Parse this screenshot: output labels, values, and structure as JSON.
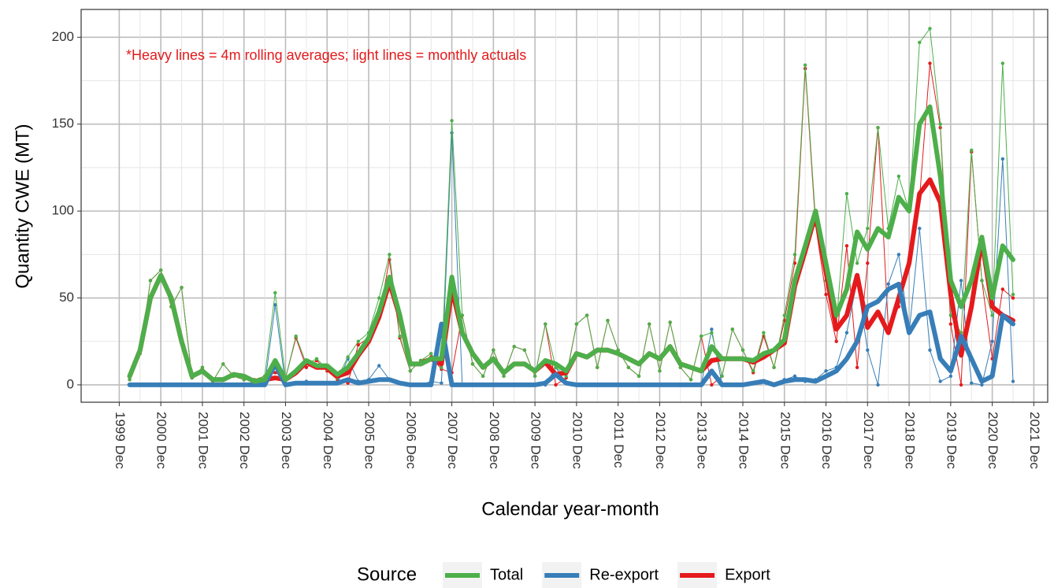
{
  "chart_data": {
    "type": "line",
    "annotation": "*Heavy lines = 4m rolling averages; light lines = monthly actuals",
    "x_label": "Calendar year-month",
    "y_label": "Quantity CWE (MT)",
    "legend_title": "Source",
    "grid": true,
    "legend_position": "bottom",
    "xlim": [
      "1999-01",
      "2022-04"
    ],
    "ylim": [
      -10,
      216
    ],
    "yticks": [
      0,
      50,
      100,
      150,
      200
    ],
    "xticks": [
      {
        "value": "1999-12",
        "label": "1999 Dec"
      },
      {
        "value": "2000-12",
        "label": "2000 Dec"
      },
      {
        "value": "2001-12",
        "label": "2001 Dec"
      },
      {
        "value": "2002-12",
        "label": "2002 Dec"
      },
      {
        "value": "2003-12",
        "label": "2003 Dec"
      },
      {
        "value": "2004-12",
        "label": "2004 Dec"
      },
      {
        "value": "2005-12",
        "label": "2005 Dec"
      },
      {
        "value": "2006-12",
        "label": "2006 Dec"
      },
      {
        "value": "2007-12",
        "label": "2007 Dec"
      },
      {
        "value": "2008-12",
        "label": "2008 Dec"
      },
      {
        "value": "2009-12",
        "label": "2009 Dec"
      },
      {
        "value": "2010-12",
        "label": "2010 Dec"
      },
      {
        "value": "2011-12",
        "label": "2011 Dec"
      },
      {
        "value": "2012-12",
        "label": "2012 Dec"
      },
      {
        "value": "2013-12",
        "label": "2013 Dec"
      },
      {
        "value": "2014-12",
        "label": "2014 Dec"
      },
      {
        "value": "2015-12",
        "label": "2015 Dec"
      },
      {
        "value": "2016-12",
        "label": "2016 Dec"
      },
      {
        "value": "2017-12",
        "label": "2017 Dec"
      },
      {
        "value": "2018-12",
        "label": "2018 Dec"
      },
      {
        "value": "2019-12",
        "label": "2019 Dec"
      },
      {
        "value": "2020-12",
        "label": "2020 Dec"
      },
      {
        "value": "2021-12",
        "label": "2021 Dec"
      }
    ],
    "x": [
      "2000-03",
      "2000-06",
      "2000-09",
      "2000-12",
      "2001-03",
      "2001-06",
      "2001-09",
      "2001-12",
      "2002-03",
      "2002-06",
      "2002-09",
      "2002-12",
      "2003-03",
      "2003-06",
      "2003-09",
      "2003-12",
      "2004-03",
      "2004-06",
      "2004-09",
      "2004-12",
      "2005-03",
      "2005-06",
      "2005-09",
      "2005-12",
      "2006-03",
      "2006-06",
      "2006-09",
      "2006-12",
      "2007-03",
      "2007-06",
      "2007-09",
      "2007-12",
      "2008-03",
      "2008-06",
      "2008-09",
      "2008-12",
      "2009-03",
      "2009-06",
      "2009-09",
      "2009-12",
      "2010-03",
      "2010-06",
      "2010-09",
      "2010-12",
      "2011-03",
      "2011-06",
      "2011-09",
      "2011-12",
      "2012-03",
      "2012-06",
      "2012-09",
      "2012-12",
      "2013-03",
      "2013-06",
      "2013-09",
      "2013-12",
      "2014-03",
      "2014-06",
      "2014-09",
      "2014-12",
      "2015-03",
      "2015-06",
      "2015-09",
      "2015-12",
      "2016-03",
      "2016-06",
      "2016-09",
      "2016-12",
      "2017-03",
      "2017-06",
      "2017-09",
      "2017-12",
      "2018-03",
      "2018-06",
      "2018-09",
      "2018-12",
      "2019-03",
      "2019-06",
      "2019-09",
      "2019-12",
      "2020-03",
      "2020-06",
      "2020-09",
      "2020-12",
      "2021-03",
      "2021-06"
    ],
    "series": [
      {
        "name": "Total",
        "color": "#4daf4a",
        "values": [
          5,
          20,
          50,
          63,
          50,
          25,
          5,
          8,
          3,
          3,
          6,
          5,
          2,
          3,
          14,
          3,
          8,
          14,
          11,
          11,
          6,
          10,
          18,
          27,
          42,
          62,
          40,
          12,
          12,
          15,
          15,
          62,
          30,
          18,
          10,
          15,
          7,
          12,
          12,
          8,
          14,
          12,
          8,
          18,
          16,
          20,
          20,
          18,
          15,
          12,
          18,
          15,
          22,
          12,
          10,
          8,
          22,
          15,
          15,
          15,
          14,
          18,
          20,
          26,
          60,
          80,
          100,
          70,
          40,
          55,
          88,
          78,
          90,
          85,
          108,
          100,
          150,
          160,
          120,
          60,
          45,
          60,
          85,
          50,
          80,
          72
        ],
        "actuals": [
          3,
          18,
          60,
          66,
          45,
          56,
          4,
          10,
          2,
          12,
          5,
          3,
          3,
          5,
          53,
          4,
          28,
          12,
          15,
          9,
          4,
          16,
          25,
          30,
          50,
          75,
          28,
          8,
          14,
          18,
          10,
          152,
          40,
          12,
          5,
          20,
          5,
          22,
          20,
          5,
          35,
          10,
          5,
          35,
          40,
          10,
          37,
          20,
          10,
          5,
          35,
          8,
          36,
          10,
          3,
          28,
          30,
          5,
          32,
          20,
          8,
          30,
          10,
          40,
          75,
          184,
          95,
          60,
          35,
          110,
          70,
          90,
          148,
          90,
          120,
          100,
          197,
          205,
          150,
          40,
          30,
          135,
          60,
          40,
          185,
          52
        ]
      },
      {
        "name": "Re-export",
        "color": "#377eb8",
        "values": [
          0,
          0,
          0,
          0,
          0,
          0,
          0,
          0,
          0,
          0,
          0,
          0,
          0,
          0,
          12,
          0,
          1,
          1,
          1,
          1,
          1,
          3,
          1,
          2,
          3,
          3,
          1,
          0,
          0,
          0,
          35,
          0,
          0,
          0,
          0,
          0,
          0,
          0,
          0,
          0,
          1,
          6,
          1,
          0,
          0,
          0,
          0,
          0,
          0,
          0,
          0,
          0,
          0,
          0,
          0,
          0,
          8,
          0,
          0,
          0,
          1,
          2,
          0,
          2,
          3,
          3,
          2,
          5,
          8,
          15,
          25,
          45,
          48,
          55,
          58,
          30,
          40,
          42,
          15,
          8,
          28,
          15,
          2,
          5,
          40,
          35
        ],
        "actuals": [
          0,
          0,
          0,
          0,
          0,
          0,
          0,
          0,
          0,
          0,
          0,
          0,
          0,
          0,
          46,
          0,
          1,
          2,
          1,
          1,
          1,
          15,
          2,
          3,
          11,
          3,
          1,
          0,
          0,
          2,
          1,
          145,
          0,
          0,
          0,
          0,
          0,
          0,
          0,
          0,
          0,
          10,
          1,
          0,
          0,
          0,
          0,
          0,
          0,
          0,
          0,
          0,
          0,
          0,
          0,
          0,
          32,
          0,
          0,
          0,
          1,
          2,
          0,
          3,
          5,
          2,
          3,
          8,
          10,
          30,
          60,
          20,
          0,
          58,
          75,
          30,
          90,
          20,
          2,
          5,
          60,
          1,
          0,
          25,
          130,
          2
        ]
      },
      {
        "name": "Export",
        "color": "#e41a1c",
        "values": [
          5,
          20,
          50,
          63,
          50,
          25,
          5,
          8,
          3,
          3,
          6,
          5,
          2,
          3,
          4,
          3,
          7,
          13,
          10,
          10,
          5,
          7,
          17,
          25,
          39,
          59,
          39,
          12,
          12,
          15,
          12,
          55,
          30,
          18,
          10,
          15,
          7,
          12,
          12,
          8,
          13,
          6,
          7,
          18,
          16,
          20,
          20,
          18,
          15,
          12,
          18,
          15,
          22,
          12,
          10,
          8,
          14,
          15,
          15,
          15,
          13,
          16,
          20,
          24,
          57,
          77,
          98,
          65,
          32,
          40,
          63,
          33,
          42,
          30,
          50,
          70,
          110,
          118,
          105,
          52,
          17,
          45,
          83,
          45,
          40,
          37
        ],
        "actuals": [
          3,
          18,
          60,
          66,
          45,
          56,
          4,
          10,
          2,
          12,
          5,
          3,
          3,
          5,
          7,
          4,
          27,
          10,
          14,
          8,
          3,
          1,
          23,
          27,
          39,
          72,
          27,
          8,
          14,
          16,
          9,
          7,
          40,
          12,
          5,
          20,
          5,
          22,
          20,
          5,
          35,
          0,
          4,
          35,
          40,
          10,
          37,
          20,
          10,
          5,
          35,
          8,
          36,
          10,
          3,
          28,
          0,
          5,
          32,
          20,
          7,
          28,
          10,
          37,
          70,
          182,
          92,
          52,
          25,
          80,
          10,
          70,
          148,
          32,
          45,
          70,
          107,
          185,
          148,
          35,
          0,
          134,
          60,
          15,
          55,
          50
        ]
      }
    ]
  }
}
